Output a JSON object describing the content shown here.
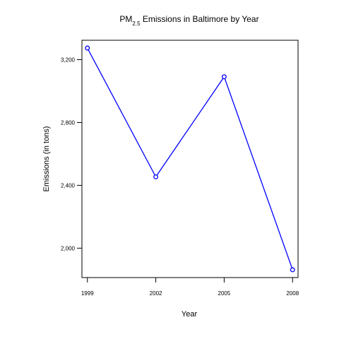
{
  "chart_data": {
    "type": "line",
    "title_main": "PM",
    "title_sub": "2.5",
    "title_rest": " Emissions in Baltimore by Year",
    "xlabel": "Year",
    "ylabel": "Emissions (in tons)",
    "x": [
      1999,
      2002,
      2005,
      2008
    ],
    "x_tick_labels": [
      "1999",
      "2002",
      "2005",
      "2008"
    ],
    "y": [
      3274.18,
      2453.92,
      3091.35,
      1862.28
    ],
    "y_ticks": [
      2000,
      2400,
      2800,
      3200
    ],
    "y_tick_labels": [
      "2,000",
      "2,400",
      "2,800",
      "3,200"
    ],
    "xlim": [
      1998.76,
      2008.24
    ],
    "ylim": [
      1812.8,
      3323.7
    ],
    "grid": false,
    "line_color": "#0000ff",
    "marker": "open-circle"
  }
}
